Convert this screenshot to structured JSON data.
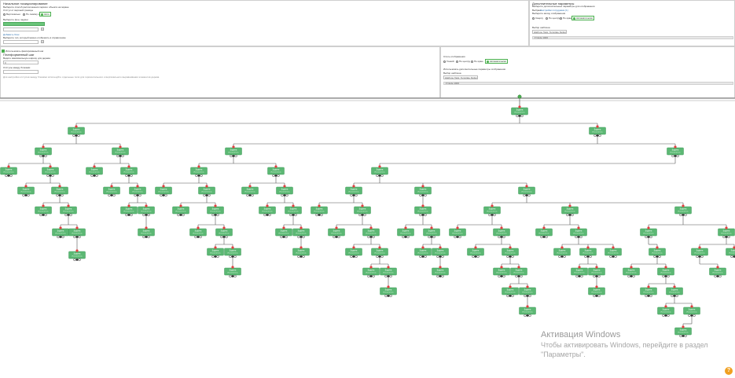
{
  "top_left": {
    "heading": "Начальное позиционирование",
    "subheading": "Выберите способ расположения первого объекта на экране",
    "position_label": "Отступ от верхней границы",
    "options": [
      {
        "label": "Вертикально",
        "selected": false
      },
      {
        "label": "По левому краю",
        "selected": false
      },
      {
        "label": "Авто",
        "selected": true
      }
    ],
    "select_label": "Выберите фон, задачи",
    "select_value": "",
    "link": "Добавить блок",
    "bottom_label": "Выберите тип, который можно отобразить в справочнике",
    "bottom_value": ""
  },
  "top_right": {
    "heading": "Дополнительные параметры",
    "line1": "Выберите дополнительные параметры для отображения",
    "prefix": "Выбран:",
    "link": "Настройки сотрудника (1)",
    "radio_label": "Выберите метод отображения",
    "options": [
      {
        "label": "Сверху",
        "selected": false
      },
      {
        "label": "По центру",
        "selected": false
      },
      {
        "label": "По краю",
        "selected": false
      },
      {
        "label": "Автоматически",
        "selected": true
      }
    ],
    "select_label": "Выбор шаблона",
    "select_value": "Шаблон Task: Template Default v.1",
    "bar_label": "Node 1000"
  },
  "middle_left": {
    "checkbox_label": "Использовать фиксированный шаг",
    "heading": "Платформенный шаг",
    "line1": "Ведите максимальную ширину для дерева",
    "width_value": "0",
    "label2": "Отступы между блоками",
    "field2_value": "",
    "hint": "Для настройки отступов между блоками используйте отдельные поля для горизонтального и вертикального выравнивания элементов дерева"
  },
  "middle_right": {
    "radio_label": "Стиль отображения",
    "options": [
      {
        "label": "Тонкий",
        "selected": false
      },
      {
        "label": "По центру",
        "selected": false
      },
      {
        "label": "По краю",
        "selected": false
      },
      {
        "label": "Автоматически",
        "selected": true
      }
    ],
    "line1": "Использовать дополнительные параметры отображения",
    "select_label": "Выбор шаблона",
    "select_value": "Шаблон Task: Template Default v.1",
    "bar_label": "Node 1000"
  },
  "tree": {
    "node_title": "Задача",
    "node_subtitle": "Исполнитель"
  },
  "watermark": {
    "title": "Активация Windows",
    "line1": "Чтобы активировать Windows, перейдите в раздел",
    "line2": "\"Параметры\"."
  },
  "help_label": "?",
  "colors": {
    "node_green": "#5cb874",
    "node_border": "#3e9a58",
    "connector_red": "#e04040",
    "connector_dark": "#333333",
    "line": "#555555"
  }
}
